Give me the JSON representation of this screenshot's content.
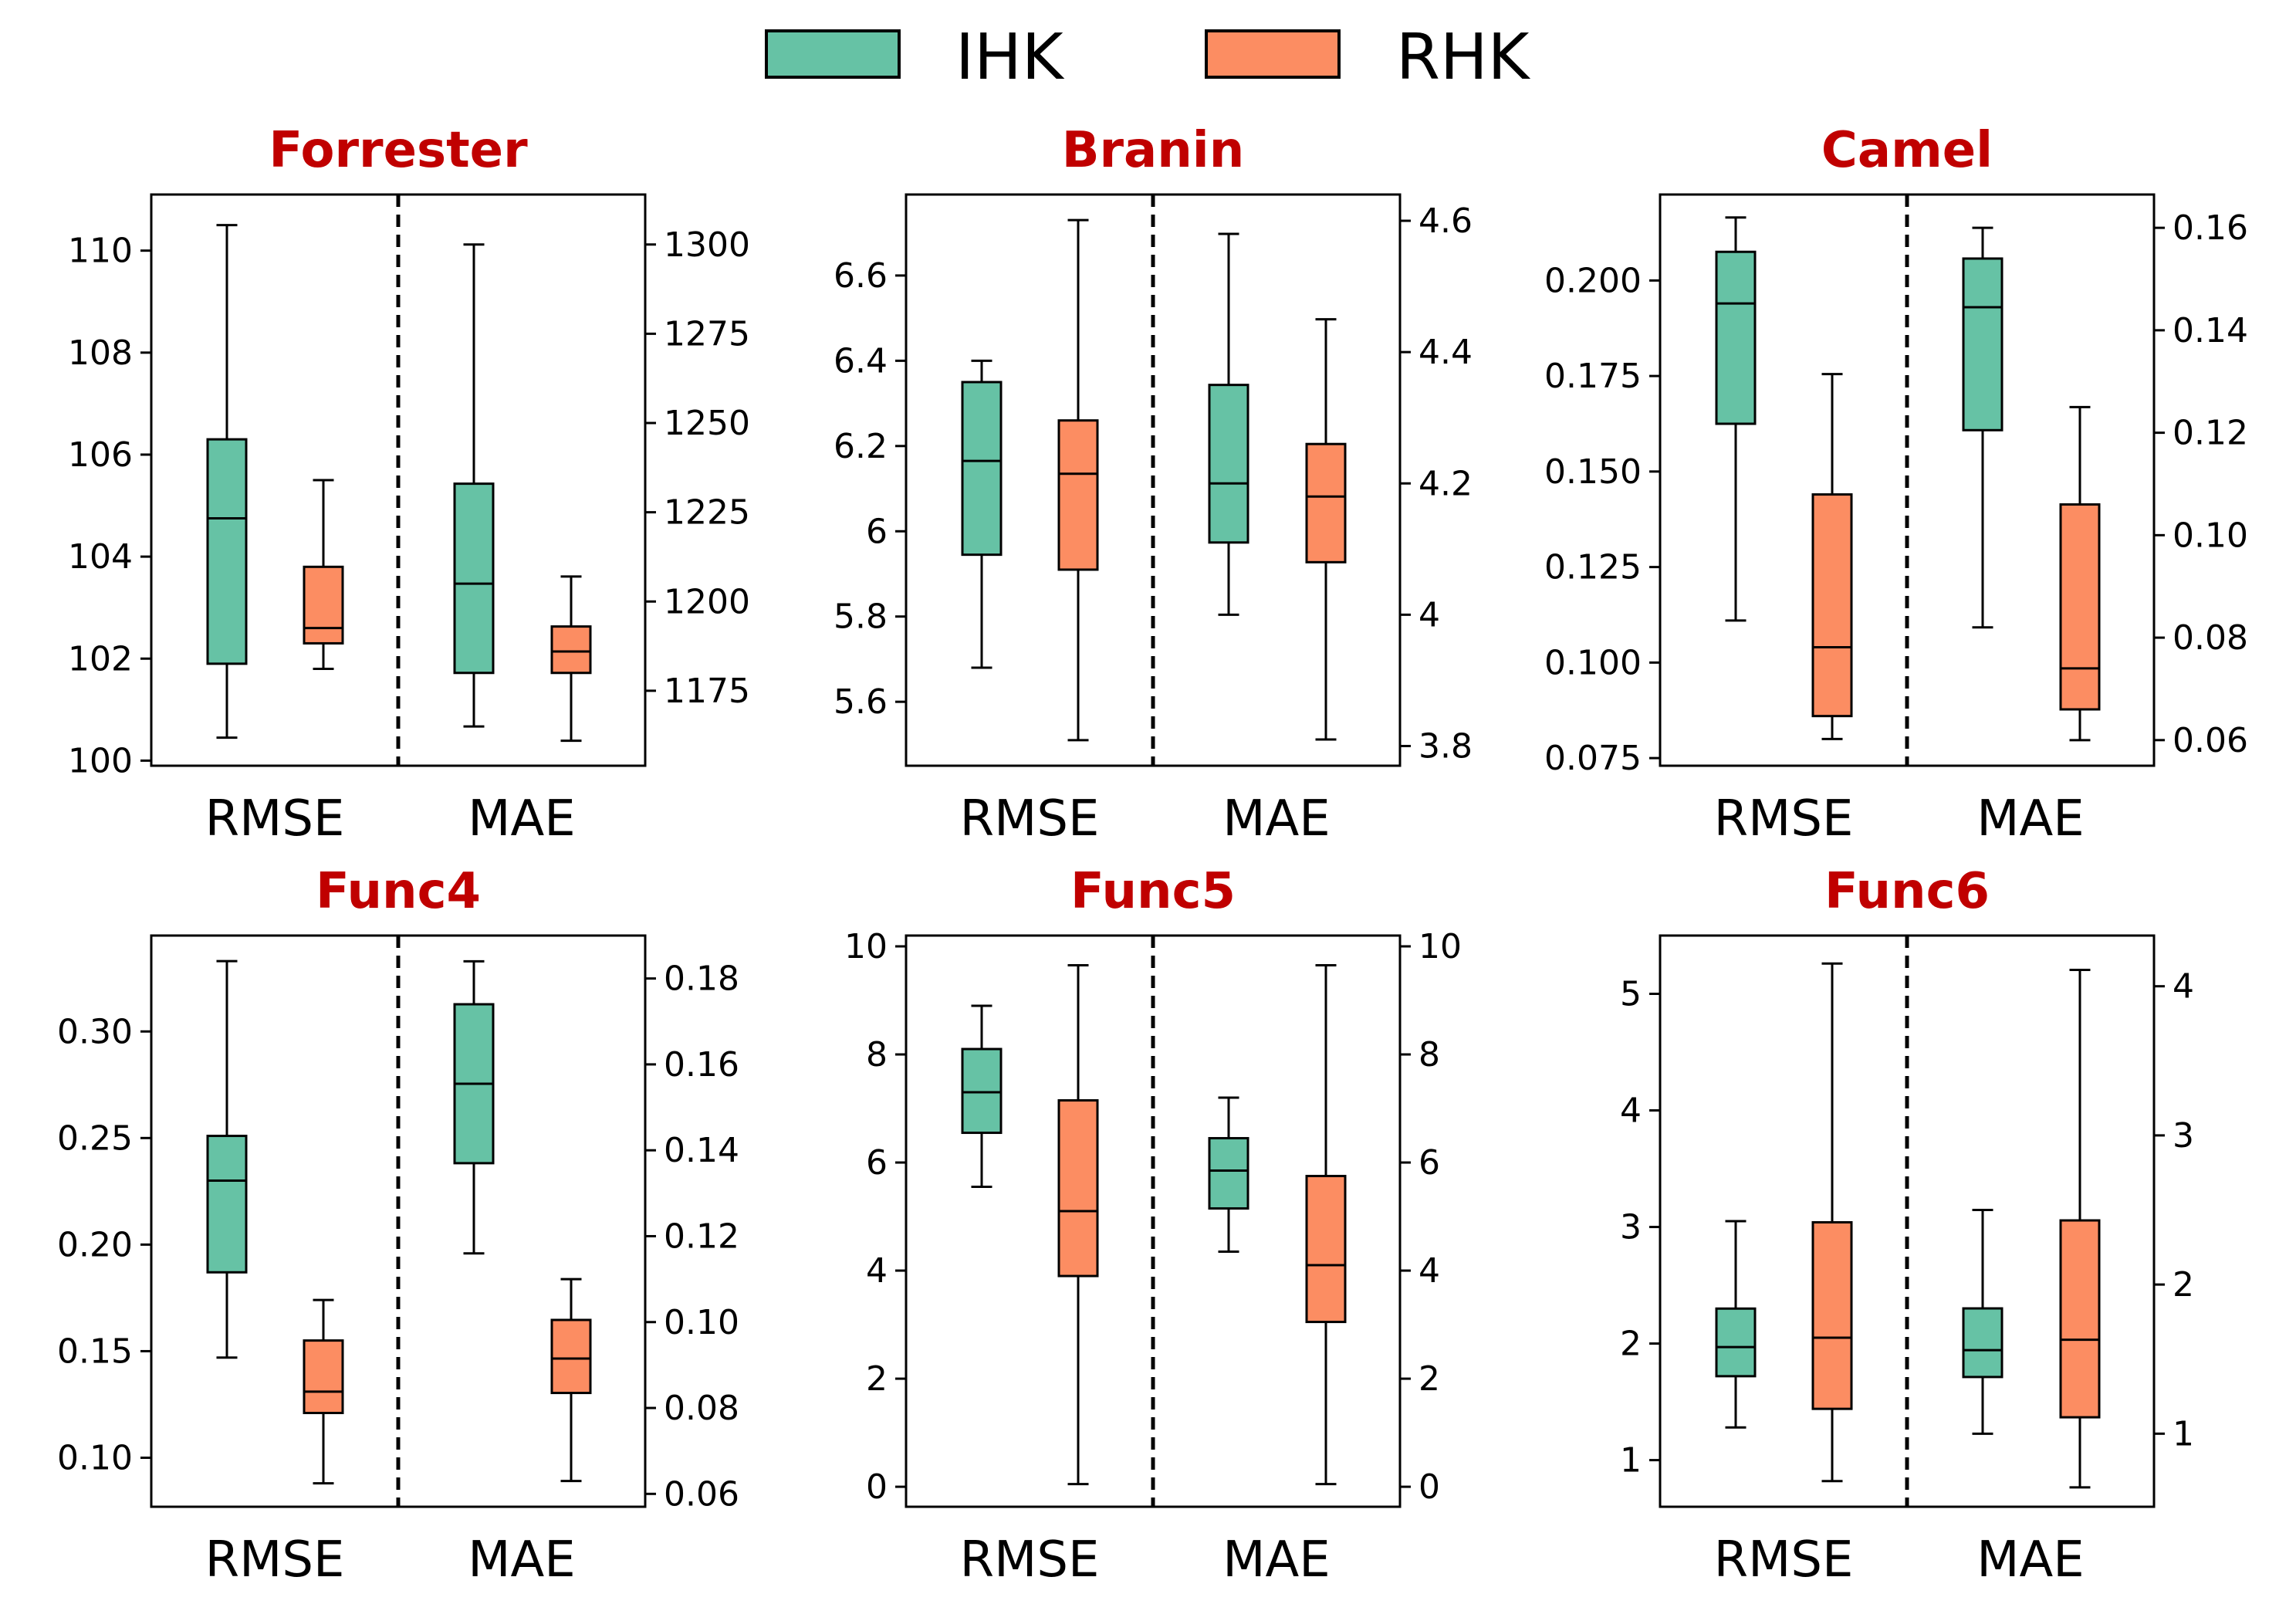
{
  "legend": {
    "items": [
      {
        "label": "IHK",
        "color": "#66c2a5"
      },
      {
        "label": "RHK",
        "color": "#fc8d62"
      }
    ]
  },
  "colors": {
    "title": "#c00000",
    "ihk": "#66c2a5",
    "rhk": "#fc8d62"
  },
  "chart_data": [
    {
      "type": "box",
      "title": "Forrester",
      "categories": [
        "RMSE",
        "MAE"
      ],
      "left_axis": {
        "ylim": [
          99.9,
          111.1
        ],
        "ticks": [
          100,
          102,
          104,
          106,
          108,
          110
        ]
      },
      "right_axis": {
        "ylim": [
          1154,
          1314
        ],
        "ticks": [
          1175,
          1200,
          1225,
          1250,
          1275,
          1300
        ]
      },
      "series": [
        {
          "name": "IHK",
          "boxes": [
            {
              "category": "RMSE",
              "axis": "left",
              "whislo": 100.45,
              "q1": 101.9,
              "med": 104.75,
              "q3": 106.3,
              "whishi": 110.5
            },
            {
              "category": "MAE",
              "axis": "right",
              "whislo": 1165,
              "q1": 1180,
              "med": 1205,
              "q3": 1233,
              "whishi": 1300
            }
          ]
        },
        {
          "name": "RHK",
          "boxes": [
            {
              "category": "RMSE",
              "axis": "left",
              "whislo": 101.8,
              "q1": 102.3,
              "med": 102.6,
              "q3": 103.8,
              "whishi": 105.5
            },
            {
              "category": "MAE",
              "axis": "right",
              "whislo": 1161,
              "q1": 1180,
              "med": 1186,
              "q3": 1193,
              "whishi": 1207
            }
          ]
        }
      ]
    },
    {
      "type": "box",
      "title": "Branin",
      "categories": [
        "RMSE",
        "MAE"
      ],
      "left_axis": {
        "ylim": [
          5.45,
          6.79
        ],
        "ticks": [
          5.6,
          5.8,
          6.0,
          6.2,
          6.4,
          6.6
        ]
      },
      "right_axis": {
        "ylim": [
          3.77,
          4.64
        ],
        "ticks": [
          3.8,
          4.0,
          4.2,
          4.4,
          4.6
        ]
      },
      "series": [
        {
          "name": "IHK",
          "boxes": [
            {
              "category": "RMSE",
              "axis": "left",
              "whislo": 5.68,
              "q1": 5.945,
              "med": 6.165,
              "q3": 6.35,
              "whishi": 6.4
            },
            {
              "category": "MAE",
              "axis": "right",
              "whislo": 4.0,
              "q1": 4.11,
              "med": 4.2,
              "q3": 4.35,
              "whishi": 4.58
            }
          ]
        },
        {
          "name": "RHK",
          "boxes": [
            {
              "category": "RMSE",
              "axis": "left",
              "whislo": 5.51,
              "q1": 5.91,
              "med": 6.135,
              "q3": 6.26,
              "whishi": 6.73
            },
            {
              "category": "MAE",
              "axis": "right",
              "whislo": 3.81,
              "q1": 4.08,
              "med": 4.18,
              "q3": 4.26,
              "whishi": 4.45
            }
          ]
        }
      ]
    },
    {
      "type": "box",
      "title": "Camel",
      "categories": [
        "RMSE",
        "MAE"
      ],
      "left_axis": {
        "ylim": [
          0.073,
          0.2225
        ],
        "ticks": [
          0.075,
          0.1,
          0.125,
          0.15,
          0.175,
          0.2
        ],
        "tick_labels": [
          "0.075",
          "0.100",
          "0.125",
          "0.150",
          "0.175",
          "0.200"
        ]
      },
      "right_axis": {
        "ylim": [
          0.055,
          0.1665
        ],
        "ticks": [
          0.06,
          0.08,
          0.1,
          0.12,
          0.14,
          0.16
        ],
        "tick_labels": [
          "0.06",
          "0.08",
          "0.10",
          "0.12",
          "0.14",
          "0.16"
        ]
      },
      "series": [
        {
          "name": "IHK",
          "boxes": [
            {
              "category": "RMSE",
              "axis": "left",
              "whislo": 0.111,
              "q1": 0.1625,
              "med": 0.194,
              "q3": 0.2075,
              "whishi": 0.2165
            },
            {
              "category": "MAE",
              "axis": "right",
              "whislo": 0.082,
              "q1": 0.1205,
              "med": 0.1445,
              "q3": 0.154,
              "whishi": 0.16
            }
          ]
        },
        {
          "name": "RHK",
          "boxes": [
            {
              "category": "RMSE",
              "axis": "left",
              "whislo": 0.08,
              "q1": 0.086,
              "med": 0.104,
              "q3": 0.144,
              "whishi": 0.1755
            },
            {
              "category": "MAE",
              "axis": "right",
              "whislo": 0.06,
              "q1": 0.066,
              "med": 0.074,
              "q3": 0.106,
              "whishi": 0.125
            }
          ]
        }
      ]
    },
    {
      "type": "box",
      "title": "Func4",
      "categories": [
        "RMSE",
        "MAE"
      ],
      "left_axis": {
        "ylim": [
          0.077,
          0.345
        ],
        "ticks": [
          0.1,
          0.15,
          0.2,
          0.25,
          0.3
        ],
        "tick_labels": [
          "0.10",
          "0.15",
          "0.20",
          "0.25",
          "0.30"
        ]
      },
      "right_axis": {
        "ylim": [
          0.057,
          0.19
        ],
        "ticks": [
          0.06,
          0.08,
          0.1,
          0.12,
          0.14,
          0.16,
          0.18
        ],
        "tick_labels": [
          "0.06",
          "0.08",
          "0.10",
          "0.12",
          "0.14",
          "0.16",
          "0.18"
        ]
      },
      "series": [
        {
          "name": "IHK",
          "boxes": [
            {
              "category": "RMSE",
              "axis": "left",
              "whislo": 0.147,
              "q1": 0.187,
              "med": 0.23,
              "q3": 0.251,
              "whishi": 0.333
            },
            {
              "category": "MAE",
              "axis": "right",
              "whislo": 0.116,
              "q1": 0.137,
              "med": 0.1555,
              "q3": 0.174,
              "whishi": 0.184
            }
          ]
        },
        {
          "name": "RHK",
          "boxes": [
            {
              "category": "RMSE",
              "axis": "left",
              "whislo": 0.088,
              "q1": 0.121,
              "med": 0.131,
              "q3": 0.155,
              "whishi": 0.174
            },
            {
              "category": "MAE",
              "axis": "right",
              "whislo": 0.063,
              "q1": 0.0835,
              "med": 0.0915,
              "q3": 0.1005,
              "whishi": 0.11
            }
          ]
        }
      ]
    },
    {
      "type": "box",
      "title": "Func5",
      "categories": [
        "RMSE",
        "MAE"
      ],
      "left_axis": {
        "ylim": [
          -0.37,
          10.2
        ],
        "ticks": [
          0,
          2,
          4,
          6,
          8,
          10
        ]
      },
      "right_axis": {
        "ylim": [
          -0.37,
          10.2
        ],
        "ticks": [
          0,
          2,
          4,
          6,
          8,
          10
        ]
      },
      "series": [
        {
          "name": "IHK",
          "boxes": [
            {
              "category": "RMSE",
              "axis": "left",
              "whislo": 5.55,
              "q1": 6.55,
              "med": 7.3,
              "q3": 8.1,
              "whishi": 8.9
            },
            {
              "category": "MAE",
              "axis": "right",
              "whislo": 4.35,
              "q1": 5.15,
              "med": 5.85,
              "q3": 6.45,
              "whishi": 7.2
            }
          ]
        },
        {
          "name": "RHK",
          "boxes": [
            {
              "category": "RMSE",
              "axis": "left",
              "whislo": 0.05,
              "q1": 3.9,
              "med": 5.1,
              "q3": 7.15,
              "whishi": 9.65
            },
            {
              "category": "MAE",
              "axis": "right",
              "whislo": 0.05,
              "q1": 3.05,
              "med": 4.1,
              "q3": 5.75,
              "whishi": 9.65
            }
          ]
        }
      ]
    },
    {
      "type": "box",
      "title": "Func6",
      "categories": [
        "RMSE",
        "MAE"
      ],
      "left_axis": {
        "ylim": [
          0.6,
          5.5
        ],
        "ticks": [
          1,
          2,
          3,
          4,
          5
        ]
      },
      "right_axis": {
        "ylim": [
          0.51,
          4.34
        ],
        "ticks": [
          1,
          2,
          3,
          4
        ]
      },
      "series": [
        {
          "name": "IHK",
          "boxes": [
            {
              "category": "RMSE",
              "axis": "left",
              "whislo": 1.28,
              "q1": 1.72,
              "med": 1.97,
              "q3": 2.3,
              "whishi": 3.05
            },
            {
              "category": "MAE",
              "axis": "right",
              "whislo": 1.0,
              "q1": 1.38,
              "med": 1.56,
              "q3": 1.84,
              "whishi": 2.5
            }
          ]
        },
        {
          "name": "RHK",
          "boxes": [
            {
              "category": "RMSE",
              "axis": "left",
              "whislo": 0.82,
              "q1": 1.44,
              "med": 2.05,
              "q3": 3.04,
              "whishi": 5.26
            },
            {
              "category": "MAE",
              "axis": "right",
              "whislo": 0.64,
              "q1": 1.11,
              "med": 1.63,
              "q3": 2.43,
              "whishi": 4.11
            }
          ]
        }
      ]
    }
  ]
}
